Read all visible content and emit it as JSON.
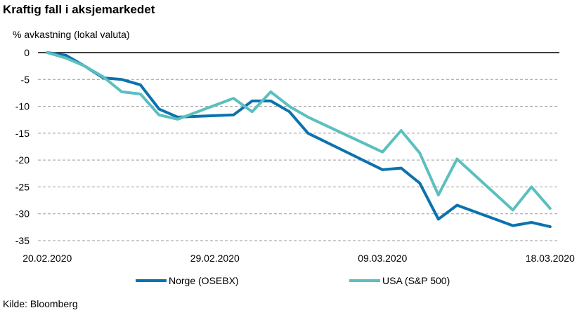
{
  "chart_data": {
    "type": "line",
    "title": "Kraftig fall i aksjemarkedet",
    "ylabel": "% avkastning (lokal valuta)",
    "xlabel": "",
    "source": "Kilde: Bloomberg",
    "ylim": [
      -35,
      0
    ],
    "yticks": [
      0,
      -5,
      -10,
      -15,
      -20,
      -25,
      -30,
      -35
    ],
    "grid": "horizontal-dashed",
    "legend": "bottom",
    "x_tick_labels": [
      "20.02.2020",
      "29.02.2020",
      "09.03.2020",
      "18.03.2020"
    ],
    "x_tick_index": [
      0,
      9,
      18,
      27
    ],
    "x": [
      "20.02.2020",
      "21.02.2020",
      "22.02.2020",
      "23.02.2020",
      "24.02.2020",
      "25.02.2020",
      "26.02.2020",
      "27.02.2020",
      "28.02.2020",
      "29.02.2020",
      "01.03.2020",
      "02.03.2020",
      "03.03.2020",
      "04.03.2020",
      "05.03.2020",
      "06.03.2020",
      "07.03.2020",
      "08.03.2020",
      "09.03.2020",
      "10.03.2020",
      "11.03.2020",
      "12.03.2020",
      "13.03.2020",
      "14.03.2020",
      "15.03.2020",
      "16.03.2020",
      "17.03.2020",
      "18.03.2020"
    ],
    "series": [
      {
        "name": "Norge (OSEBX)",
        "color": "#0c72ad",
        "values": [
          0,
          -0.5,
          -2.5,
          -4.7,
          -5.0,
          -6.0,
          -10.5,
          -12.0,
          null,
          null,
          -11.6,
          -9.0,
          -9.0,
          -11.0,
          -15.0,
          null,
          null,
          null,
          -21.8,
          -21.5,
          -24.3,
          -31.0,
          -28.4,
          null,
          null,
          -32.2,
          -31.6,
          -32.4
        ]
      },
      {
        "name": "USA (S&P 500)",
        "color": "#5cbfbf",
        "values": [
          0,
          -1.0,
          -2.5,
          -4.5,
          -7.3,
          -7.7,
          -11.6,
          -12.4,
          null,
          null,
          -8.5,
          -11.0,
          -7.3,
          -10.0,
          -12.0,
          null,
          null,
          null,
          -18.5,
          -14.5,
          -18.7,
          -26.5,
          -19.8,
          null,
          null,
          -29.3,
          -25.0,
          -29.0
        ]
      }
    ]
  }
}
